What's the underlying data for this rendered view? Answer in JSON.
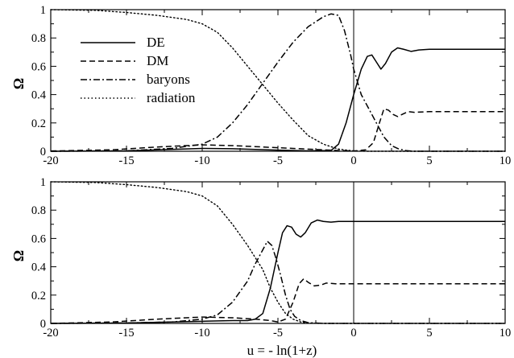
{
  "chart_data": [
    {
      "type": "line",
      "panel": "top",
      "ylabel": "Ω",
      "xlim": [
        -20,
        10
      ],
      "ylim": [
        0,
        1
      ],
      "xticks": [
        -20,
        -15,
        -10,
        -5,
        0,
        5,
        10
      ],
      "yticks": [
        0,
        0.2,
        0.4,
        0.6,
        0.8,
        1
      ],
      "vline_x": 0,
      "legend": {
        "placement": "top-left",
        "entries": [
          "DE",
          "DM",
          "baryons",
          "radiation"
        ]
      },
      "series": [
        {
          "name": "DE",
          "style": "solid",
          "points": [
            [
              -20,
              0
            ],
            [
              -15,
              0.003
            ],
            [
              -10,
              0.02
            ],
            [
              -8,
              0.018
            ],
            [
              -5,
              0.008
            ],
            [
              -3,
              0.003
            ],
            [
              -1.5,
              0.005
            ],
            [
              -1,
              0.05
            ],
            [
              -0.5,
              0.2
            ],
            [
              0,
              0.4
            ],
            [
              0.5,
              0.58
            ],
            [
              0.9,
              0.67
            ],
            [
              1.2,
              0.68
            ],
            [
              1.5,
              0.63
            ],
            [
              1.8,
              0.58
            ],
            [
              2.1,
              0.62
            ],
            [
              2.5,
              0.7
            ],
            [
              2.9,
              0.73
            ],
            [
              3.3,
              0.72
            ],
            [
              3.8,
              0.705
            ],
            [
              4.3,
              0.715
            ],
            [
              5,
              0.72
            ],
            [
              6,
              0.72
            ],
            [
              7,
              0.72
            ],
            [
              10,
              0.72
            ]
          ]
        },
        {
          "name": "DM",
          "style": "dashed",
          "points": [
            [
              -20,
              0.002
            ],
            [
              -16,
              0.01
            ],
            [
              -13,
              0.03
            ],
            [
              -10,
              0.045
            ],
            [
              -8,
              0.04
            ],
            [
              -6,
              0.03
            ],
            [
              -4,
              0.02
            ],
            [
              -2,
              0.01
            ],
            [
              -1,
              0.005
            ],
            [
              0,
              0.002
            ],
            [
              0.8,
              0.01
            ],
            [
              1.3,
              0.06
            ],
            [
              1.7,
              0.2
            ],
            [
              2.0,
              0.3
            ],
            [
              2.3,
              0.29
            ],
            [
              2.6,
              0.26
            ],
            [
              2.9,
              0.245
            ],
            [
              3.2,
              0.26
            ],
            [
              3.6,
              0.28
            ],
            [
              4,
              0.275
            ],
            [
              5,
              0.28
            ],
            [
              10,
              0.28
            ]
          ]
        },
        {
          "name": "baryons",
          "style": "dashdot",
          "points": [
            [
              -20,
              0
            ],
            [
              -15,
              0.003
            ],
            [
              -12,
              0.02
            ],
            [
              -10,
              0.05
            ],
            [
              -9,
              0.1
            ],
            [
              -8,
              0.2
            ],
            [
              -7,
              0.33
            ],
            [
              -6,
              0.48
            ],
            [
              -5,
              0.63
            ],
            [
              -4,
              0.77
            ],
            [
              -3,
              0.88
            ],
            [
              -2,
              0.95
            ],
            [
              -1.5,
              0.97
            ],
            [
              -1,
              0.96
            ],
            [
              -0.6,
              0.85
            ],
            [
              -0.2,
              0.68
            ],
            [
              0,
              0.58
            ],
            [
              0.5,
              0.4
            ],
            [
              1,
              0.3
            ],
            [
              1.5,
              0.2
            ],
            [
              2,
              0.1
            ],
            [
              2.5,
              0.04
            ],
            [
              3,
              0.015
            ],
            [
              3.5,
              0.004
            ],
            [
              4,
              0
            ],
            [
              10,
              0
            ]
          ]
        },
        {
          "name": "radiation",
          "style": "dotted",
          "points": [
            [
              -20,
              1
            ],
            [
              -17,
              0.995
            ],
            [
              -15,
              0.98
            ],
            [
              -13,
              0.96
            ],
            [
              -11,
              0.93
            ],
            [
              -10,
              0.9
            ],
            [
              -9,
              0.84
            ],
            [
              -8,
              0.73
            ],
            [
              -7,
              0.6
            ],
            [
              -6,
              0.47
            ],
            [
              -5,
              0.34
            ],
            [
              -4,
              0.22
            ],
            [
              -3,
              0.11
            ],
            [
              -2,
              0.05
            ],
            [
              -1,
              0.015
            ],
            [
              0,
              0.002
            ],
            [
              1,
              0
            ],
            [
              10,
              0
            ]
          ]
        }
      ]
    },
    {
      "type": "line",
      "panel": "bottom",
      "ylabel": "Ω",
      "xlabel": "u = - ln(1+z)",
      "xlim": [
        -20,
        10
      ],
      "ylim": [
        0,
        1
      ],
      "xticks": [
        -20,
        -15,
        -10,
        -5,
        0,
        5,
        10
      ],
      "yticks": [
        0,
        0.2,
        0.4,
        0.6,
        0.8,
        1
      ],
      "vline_x": 0,
      "series": [
        {
          "name": "DE",
          "style": "solid",
          "points": [
            [
              -20,
              0
            ],
            [
              -15,
              0.003
            ],
            [
              -10,
              0.015
            ],
            [
              -8,
              0.02
            ],
            [
              -7,
              0.02
            ],
            [
              -6.5,
              0.03
            ],
            [
              -6,
              0.07
            ],
            [
              -5.5,
              0.25
            ],
            [
              -5,
              0.5
            ],
            [
              -4.7,
              0.64
            ],
            [
              -4.4,
              0.69
            ],
            [
              -4.1,
              0.68
            ],
            [
              -3.8,
              0.63
            ],
            [
              -3.5,
              0.61
            ],
            [
              -3.2,
              0.64
            ],
            [
              -2.8,
              0.71
            ],
            [
              -2.4,
              0.73
            ],
            [
              -2,
              0.72
            ],
            [
              -1.5,
              0.715
            ],
            [
              -1,
              0.72
            ],
            [
              0,
              0.72
            ],
            [
              10,
              0.72
            ]
          ]
        },
        {
          "name": "DM",
          "style": "dashed",
          "points": [
            [
              -20,
              0
            ],
            [
              -16,
              0.01
            ],
            [
              -13,
              0.03
            ],
            [
              -10,
              0.045
            ],
            [
              -8,
              0.04
            ],
            [
              -6.5,
              0.03
            ],
            [
              -5.5,
              0.02
            ],
            [
              -5,
              0.01
            ],
            [
              -4.5,
              0.03
            ],
            [
              -4,
              0.15
            ],
            [
              -3.6,
              0.28
            ],
            [
              -3.3,
              0.315
            ],
            [
              -3,
              0.29
            ],
            [
              -2.6,
              0.265
            ],
            [
              -2.2,
              0.27
            ],
            [
              -1.8,
              0.285
            ],
            [
              -1.2,
              0.28
            ],
            [
              0,
              0.28
            ],
            [
              10,
              0.28
            ]
          ]
        },
        {
          "name": "baryons",
          "style": "dashdot",
          "points": [
            [
              -20,
              0
            ],
            [
              -15,
              0.003
            ],
            [
              -12,
              0.01
            ],
            [
              -10,
              0.03
            ],
            [
              -9,
              0.06
            ],
            [
              -8,
              0.15
            ],
            [
              -7,
              0.3
            ],
            [
              -6.5,
              0.42
            ],
            [
              -6,
              0.52
            ],
            [
              -5.7,
              0.58
            ],
            [
              -5.4,
              0.55
            ],
            [
              -5.1,
              0.45
            ],
            [
              -4.8,
              0.33
            ],
            [
              -4.5,
              0.2
            ],
            [
              -4.2,
              0.1
            ],
            [
              -3.9,
              0.05
            ],
            [
              -3.5,
              0.02
            ],
            [
              -3,
              0.005
            ],
            [
              -2,
              0
            ],
            [
              10,
              0
            ]
          ]
        },
        {
          "name": "radiation",
          "style": "dotted",
          "points": [
            [
              -20,
              1
            ],
            [
              -17,
              0.995
            ],
            [
              -15,
              0.98
            ],
            [
              -13,
              0.96
            ],
            [
              -11,
              0.93
            ],
            [
              -10,
              0.9
            ],
            [
              -9,
              0.83
            ],
            [
              -8,
              0.7
            ],
            [
              -7,
              0.55
            ],
            [
              -6,
              0.38
            ],
            [
              -5.5,
              0.25
            ],
            [
              -5,
              0.15
            ],
            [
              -4.5,
              0.07
            ],
            [
              -4,
              0.03
            ],
            [
              -3.5,
              0.01
            ],
            [
              -3,
              0.002
            ],
            [
              -2,
              0
            ],
            [
              10,
              0
            ]
          ]
        }
      ]
    }
  ]
}
